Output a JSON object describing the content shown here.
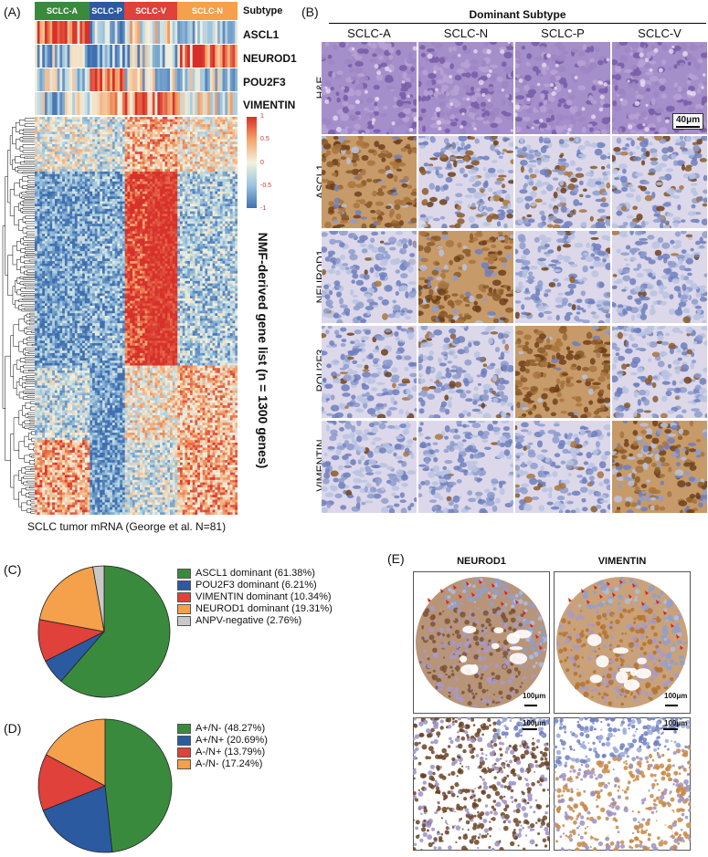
{
  "panelA": {
    "letter": "(A)",
    "subtype_header": "Subtype",
    "subtypes": [
      {
        "label": "SCLC-A",
        "color": "#3a8a3e"
      },
      {
        "label": "SCLC-P",
        "color": "#2c5aa0"
      },
      {
        "label": "SCLC-V",
        "color": "#e0413a"
      },
      {
        "label": "SCLC-N",
        "color": "#f5a04a"
      }
    ],
    "genes": [
      "ASCL1",
      "NEUROD1",
      "POU2F3",
      "VIMENTIN"
    ],
    "scale_ticks": [
      "1",
      "0.5",
      "0",
      "-0.5",
      "-1"
    ],
    "side_label": "NMF-derived gene list (n = 1300 genes)",
    "bottom_label": "SCLC tumor mRNA (George et al. N=81)"
  },
  "panelB": {
    "letter": "(B)",
    "title": "Dominant Subtype",
    "columns": [
      "SCLC-A",
      "SCLC-N",
      "SCLC-P",
      "SCLC-V"
    ],
    "rows": [
      "H&E",
      "ASCL1",
      "NEUROD1",
      "POU2F3",
      "VIMENTIN"
    ],
    "scalebar": "40μm"
  },
  "panelC": {
    "letter": "(C)",
    "chart_data": {
      "type": "pie",
      "labels": [
        "ASCL1 dominant (61.38%)",
        "POU2F3 dominant (6.21%)",
        "VIMENTIN dominant (10.34%)",
        "NEUROD1 dominant (19.31%)",
        "ANPV-negative (2.76%)"
      ],
      "values": [
        61.38,
        6.21,
        10.34,
        19.31,
        2.76
      ],
      "colors": [
        "#3a8a3e",
        "#2c5aa0",
        "#e0413a",
        "#f5a04a",
        "#c8c8c8"
      ]
    }
  },
  "panelD": {
    "letter": "(D)",
    "chart_data": {
      "type": "pie",
      "labels": [
        "A+/N-   (48.27%)",
        "A+/N+  (20.69%)",
        "A-/N+   (13.79%)",
        "A-/N-   (17.24%)"
      ],
      "values": [
        48.27,
        20.69,
        13.79,
        17.24
      ],
      "colors": [
        "#3a8a3e",
        "#2c5aa0",
        "#e0413a",
        "#f5a04a"
      ]
    }
  },
  "panelE": {
    "letter": "(E)",
    "columns": [
      "NEUROD1",
      "VIMENTIN"
    ],
    "scalebars": [
      "100μm",
      "100μm",
      "100μm",
      "100μm"
    ]
  }
}
